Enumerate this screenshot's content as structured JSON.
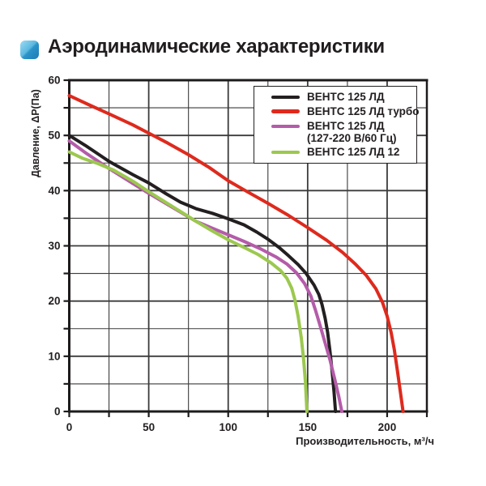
{
  "header": {
    "title": "Аэродинамические характеристики",
    "icon": "blue-gradient-square-bullet"
  },
  "chart_data": {
    "type": "line",
    "title": "Аэродинамические характеристики",
    "xlabel": "Производительность, м³/ч",
    "ylabel": "Давление, ΔР(Па)",
    "xlim": [
      0,
      225
    ],
    "ylim": [
      0,
      60
    ],
    "x_ticks": [
      0,
      50,
      100,
      150,
      200
    ],
    "x_minor_step": 25,
    "y_ticks": [
      0,
      10,
      20,
      30,
      40,
      50,
      60
    ],
    "y_minor_step": 5,
    "grid": true,
    "legend_position": "top-right",
    "colors": {
      "grid": "#3b3b3b",
      "axis": "#1d1b1c",
      "text": "#231f20"
    },
    "series": [
      {
        "name": "ВЕНТС 125 ЛД",
        "color": "#231f20",
        "points": [
          [
            0,
            50
          ],
          [
            10,
            48.2
          ],
          [
            25,
            45.3
          ],
          [
            40,
            42.9
          ],
          [
            50,
            41.4
          ],
          [
            60,
            39.6
          ],
          [
            70,
            37.9
          ],
          [
            80,
            36.7
          ],
          [
            90,
            35.9
          ],
          [
            100,
            34.9
          ],
          [
            110,
            33.8
          ],
          [
            118,
            32.5
          ],
          [
            125,
            31.2
          ],
          [
            132,
            29.7
          ],
          [
            138,
            28.2
          ],
          [
            144,
            26.6
          ],
          [
            149,
            25
          ],
          [
            154,
            22.9
          ],
          [
            157,
            21.2
          ],
          [
            159,
            19.4
          ],
          [
            161,
            16.9
          ],
          [
            162.5,
            14.4
          ],
          [
            164,
            11
          ],
          [
            165.5,
            7
          ],
          [
            166.6,
            3.5
          ],
          [
            167.5,
            0
          ]
        ]
      },
      {
        "name": "ВЕНТС 125 ЛД турбо",
        "color": "#de2a1d",
        "points": [
          [
            0,
            57.2
          ],
          [
            12,
            55.6
          ],
          [
            25,
            53.9
          ],
          [
            40,
            51.9
          ],
          [
            50,
            50.4
          ],
          [
            62,
            48.6
          ],
          [
            75,
            46.5
          ],
          [
            88,
            44.2
          ],
          [
            100,
            41.8
          ],
          [
            112,
            39.8
          ],
          [
            125,
            37.7
          ],
          [
            138,
            35.5
          ],
          [
            150,
            33.3
          ],
          [
            162,
            31
          ],
          [
            172,
            28.8
          ],
          [
            180,
            26.7
          ],
          [
            187,
            24.6
          ],
          [
            193,
            22.2
          ],
          [
            197,
            19.8
          ],
          [
            200,
            17.3
          ],
          [
            202.5,
            14.3
          ],
          [
            204.5,
            11.2
          ],
          [
            206.5,
            7.3
          ],
          [
            208.5,
            3.2
          ],
          [
            210,
            0
          ]
        ]
      },
      {
        "name": "ВЕНТС 125 ЛД (127-220 В/60 Гц)",
        "legend_label": "ВЕНТС 125 ЛД",
        "legend_sublabel": "(127-220 В/60 Гц)",
        "color": "#b45ca9",
        "points": [
          [
            0,
            49
          ],
          [
            10,
            46.9
          ],
          [
            25,
            44
          ],
          [
            40,
            41.3
          ],
          [
            50,
            39.5
          ],
          [
            60,
            37.8
          ],
          [
            70,
            36.1
          ],
          [
            80,
            34.4
          ],
          [
            90,
            33.2
          ],
          [
            100,
            32
          ],
          [
            110,
            30.8
          ],
          [
            120,
            29.5
          ],
          [
            130,
            28
          ],
          [
            137,
            26.7
          ],
          [
            143,
            25.1
          ],
          [
            148,
            23.2
          ],
          [
            152,
            20.9
          ],
          [
            155,
            18.3
          ],
          [
            158,
            15.4
          ],
          [
            161,
            12.4
          ],
          [
            164,
            9.4
          ],
          [
            167,
            5.9
          ],
          [
            169.5,
            2.8
          ],
          [
            171.5,
            0
          ]
        ]
      },
      {
        "name": "ВЕНТС 125 ЛД 12",
        "color": "#9cc84f",
        "points": [
          [
            0,
            47
          ],
          [
            8,
            45.9
          ],
          [
            18,
            44.9
          ],
          [
            28,
            43.7
          ],
          [
            40,
            41.7
          ],
          [
            50,
            39.8
          ],
          [
            60,
            38
          ],
          [
            70,
            36.2
          ],
          [
            80,
            34.4
          ],
          [
            90,
            32.7
          ],
          [
            100,
            31.1
          ],
          [
            110,
            29.7
          ],
          [
            119,
            28.4
          ],
          [
            127,
            26.9
          ],
          [
            133,
            25.5
          ],
          [
            137,
            24.1
          ],
          [
            140,
            22.3
          ],
          [
            142,
            20.2
          ],
          [
            144,
            17.2
          ],
          [
            146,
            13.3
          ],
          [
            147.5,
            9.3
          ],
          [
            148.6,
            5.3
          ],
          [
            149.5,
            0
          ]
        ]
      }
    ]
  }
}
